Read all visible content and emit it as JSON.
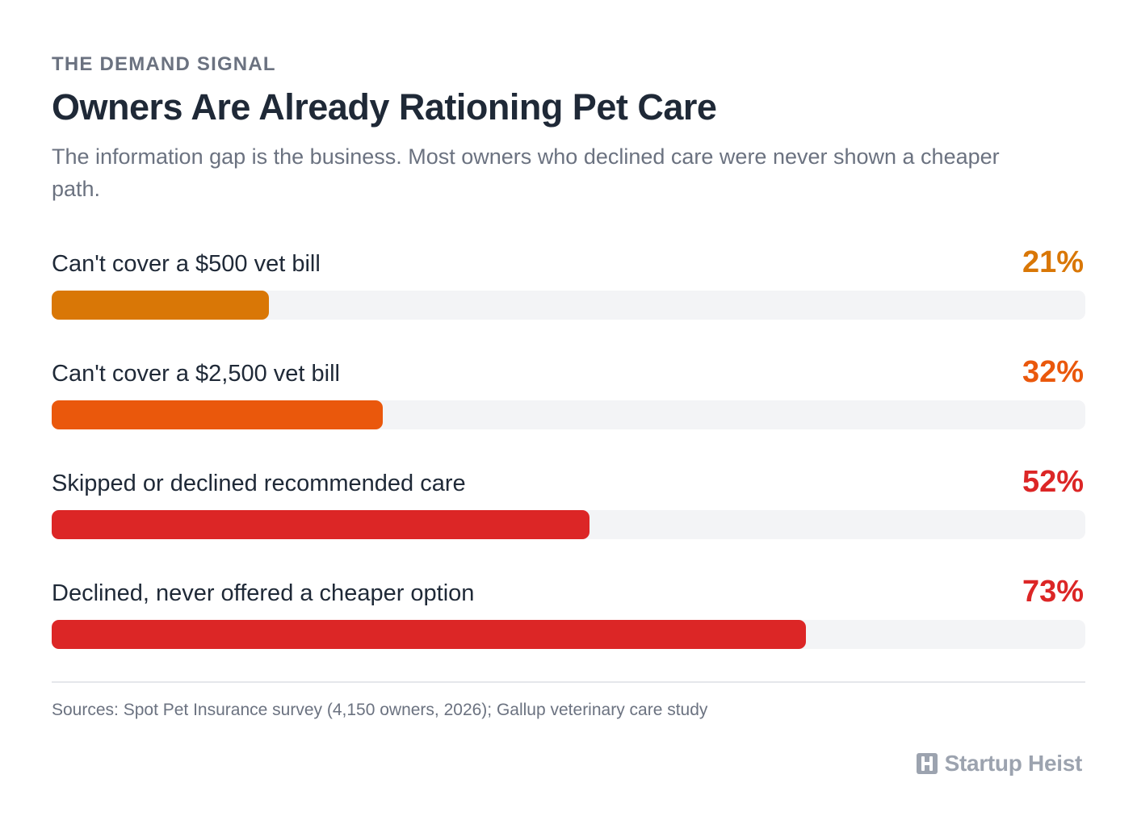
{
  "header": {
    "eyebrow": "THE DEMAND SIGNAL",
    "title": "Owners Are Already Rationing Pet Care",
    "subtitle": "The information gap is the business. Most owners who declined care were never shown a cheaper path."
  },
  "chart_data": {
    "type": "bar",
    "orientation": "horizontal",
    "ylim": [
      0,
      100
    ],
    "grid": false,
    "legend": "none",
    "categories": [
      "Can't cover a $500 vet bill",
      "Can't cover a $2,500 vet bill",
      "Skipped or declined recommended care",
      "Declined, never offered a cheaper option"
    ],
    "values": [
      21,
      32,
      52,
      73
    ],
    "value_labels": [
      "21%",
      "32%",
      "52%",
      "73%"
    ],
    "colors": [
      "#d97706",
      "#ea580c",
      "#dc2626",
      "#dc2626"
    ],
    "track_color": "#f3f4f6"
  },
  "footer": {
    "source": "Sources: Spot Pet Insurance survey (4,150 owners, 2026); Gallup veterinary care study",
    "brand_icon": "building-logo-icon",
    "brand_name": "Startup Heist"
  }
}
